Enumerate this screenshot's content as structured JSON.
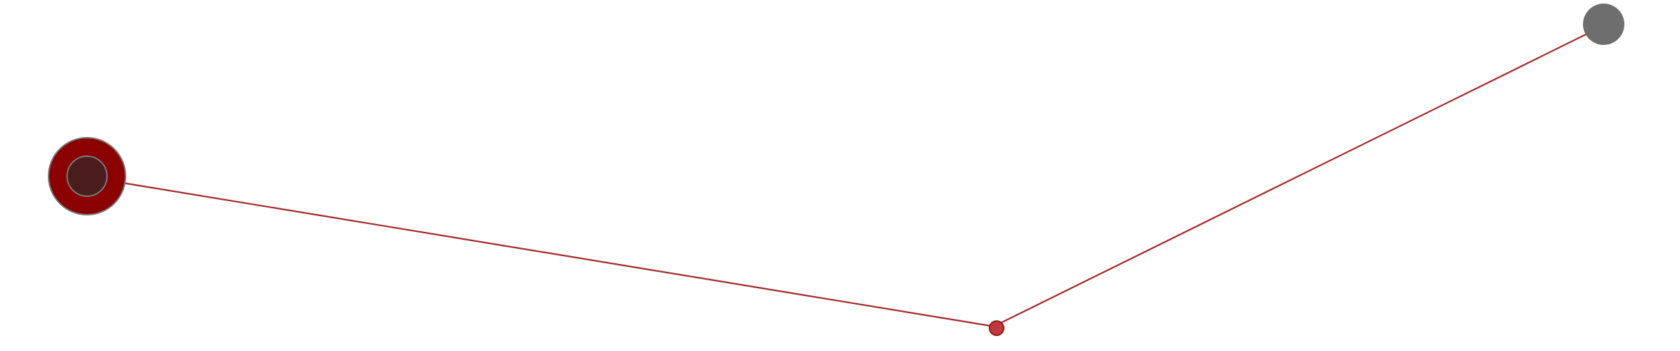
{
  "diagram": {
    "colors": {
      "background": "#ffffff",
      "edge": "#a52a2a",
      "node_outline": "#7a7a7a",
      "node_start_outer": "#8b0000",
      "node_start_inner": "#4a1c1c",
      "node_mid": "#c0393f",
      "node_mid_outline": "#8b1a1a",
      "node_end": "#6e6e6e"
    },
    "nodes": [
      {
        "id": "start",
        "type": "source"
      },
      {
        "id": "mid",
        "type": "waypoint"
      },
      {
        "id": "end",
        "type": "sink"
      }
    ],
    "edges": [
      {
        "from": "start",
        "to": "mid"
      },
      {
        "from": "mid",
        "to": "end"
      }
    ]
  }
}
